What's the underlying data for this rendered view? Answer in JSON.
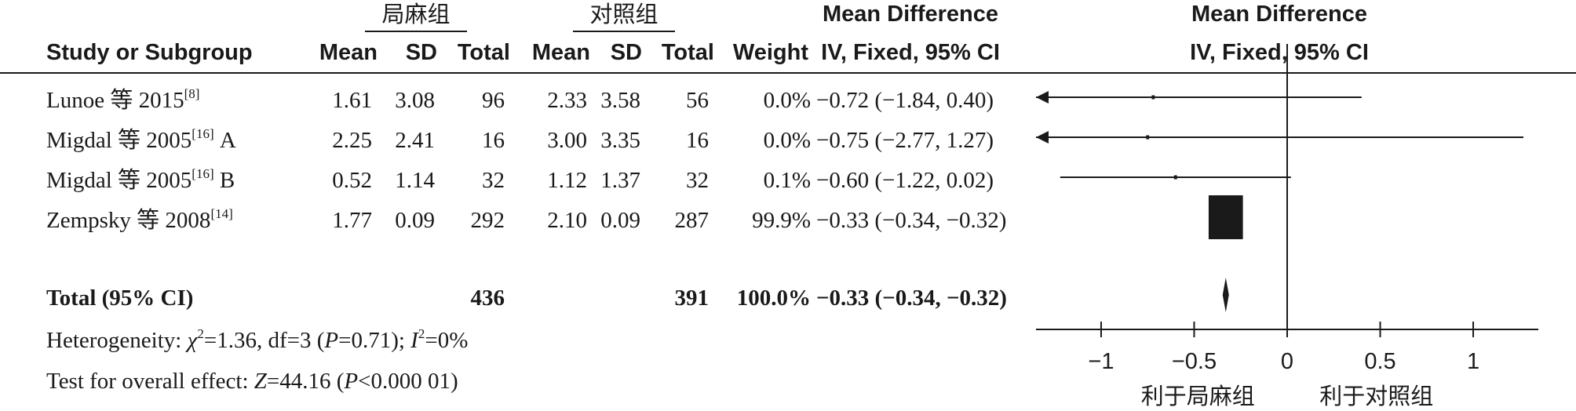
{
  "header": {
    "group1": "局麻组",
    "group2": "对照组",
    "md_title": "Mean Difference",
    "md_method": "IV, Fixed, 95% CI",
    "plot_title": "Mean Difference",
    "plot_method": "IV, Fixed, 95% CI",
    "col_study": "Study or Subgroup",
    "col_mean1": "Mean",
    "col_sd1": "SD",
    "col_total1": "Total",
    "col_mean2": "Mean",
    "col_sd2": "SD",
    "col_total2": "Total",
    "col_weight": "Weight"
  },
  "studies": [
    {
      "name": "Lunoe 等 2015",
      "ref": "[8]",
      "suffix": "",
      "mean1": "1.61",
      "sd1": "3.08",
      "total1": "96",
      "mean2": "2.33",
      "sd2": "3.58",
      "total2": "56",
      "weight": "0.0%",
      "ci_text": "−0.72 (−1.84, 0.40)"
    },
    {
      "name": "Migdal 等 2005",
      "ref": "[16]",
      "suffix": " A",
      "mean1": "2.25",
      "sd1": "2.41",
      "total1": "16",
      "mean2": "3.00",
      "sd2": "3.35",
      "total2": "16",
      "weight": "0.0%",
      "ci_text": "−0.75 (−2.77, 1.27)"
    },
    {
      "name": "Migdal 等 2005",
      "ref": "[16]",
      "suffix": " B",
      "mean1": "0.52",
      "sd1": "1.14",
      "total1": "32",
      "mean2": "1.12",
      "sd2": "1.37",
      "total2": "32",
      "weight": "0.1%",
      "ci_text": "−0.60 (−1.22, 0.02)"
    },
    {
      "name": "Zempsky 等 2008",
      "ref": "[14]",
      "suffix": "",
      "mean1": "1.77",
      "sd1": "0.09",
      "total1": "292",
      "mean2": "2.10",
      "sd2": "0.09",
      "total2": "287",
      "weight": "99.9%",
      "ci_text": "−0.33 (−0.34, −0.32)"
    }
  ],
  "total": {
    "label": "Total (95% CI)",
    "total1": "436",
    "total2": "391",
    "weight": "100.0%",
    "ci_text": "−0.33 (−0.34, −0.32)"
  },
  "heterogeneity": {
    "prefix": "Heterogeneity: ",
    "chi_symbol": "χ",
    "chi_value": "=1.36, df=3 (",
    "p_symbol": "P",
    "p_value": "=0.71); ",
    "i_symbol": "I",
    "i_value": "=0%"
  },
  "overall": {
    "prefix": "Test for overall effect: ",
    "z_symbol": "Z",
    "z_value": "=44.16 (",
    "p_symbol": "P",
    "p_value": "<0.000 01)"
  },
  "chart_data": {
    "type": "forest",
    "xlim": [
      -1.35,
      1.35
    ],
    "ticks": [
      -1,
      -0.5,
      0,
      0.5,
      1
    ],
    "tick_labels": [
      "−1",
      "−0.5",
      "0",
      "0.5",
      "1"
    ],
    "favours_left": "利于局麻组",
    "favours_right": "利于对照组",
    "points": [
      {
        "label": "Lunoe 等 2015",
        "md": -0.72,
        "lower": -1.84,
        "upper": 0.4,
        "weight": 0.0
      },
      {
        "label": "Migdal 等 2005 A",
        "md": -0.75,
        "lower": -2.77,
        "upper": 1.27,
        "weight": 0.0
      },
      {
        "label": "Migdal 等 2005 B",
        "md": -0.6,
        "lower": -1.22,
        "upper": 0.02,
        "weight": 0.1
      },
      {
        "label": "Zempsky 等 2008",
        "md": -0.33,
        "lower": -0.34,
        "upper": -0.32,
        "weight": 99.9
      }
    ],
    "pooled": {
      "label": "Total (95% CI)",
      "md": -0.33,
      "lower": -0.34,
      "upper": -0.32
    }
  }
}
